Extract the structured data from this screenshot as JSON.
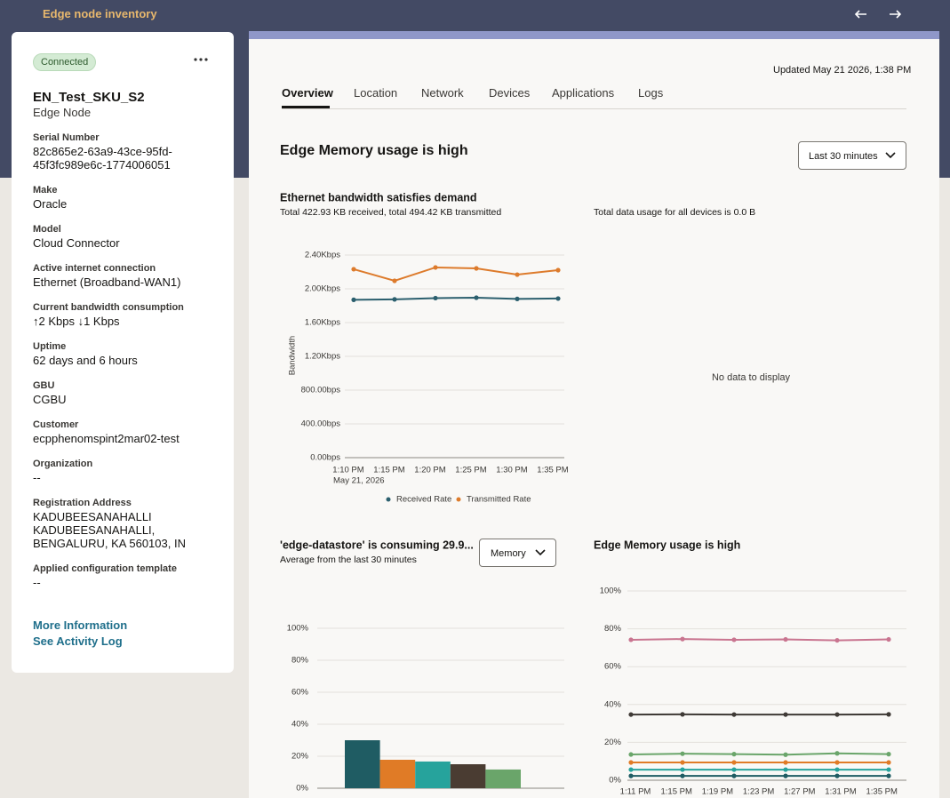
{
  "header": {
    "title": "Edge node inventory"
  },
  "node": {
    "status": "Connected",
    "name": "EN_Test_SKU_S2",
    "type": "Edge Node",
    "fields": [
      {
        "label": "Serial Number",
        "value": "82c865e2-63a9-43ce-95fd-45f3fc989e6c-1774006051"
      },
      {
        "label": "Make",
        "value": "Oracle"
      },
      {
        "label": "Model",
        "value": "Cloud Connector"
      },
      {
        "label": "Active internet connection",
        "value": "Ethernet (Broadband-WAN1)"
      },
      {
        "label": "Current bandwidth consumption",
        "value": "↑2 Kbps  ↓1 Kbps"
      },
      {
        "label": "Uptime",
        "value": "62 days and 6 hours"
      },
      {
        "label": "GBU",
        "value": "CGBU"
      },
      {
        "label": "Customer",
        "value": "ecpphenomspint2mar02-test"
      },
      {
        "label": "Organization",
        "value": "--"
      },
      {
        "label": "Registration Address",
        "value": "KADUBEESANAHALLI KADUBEESANAHALLI, BENGALURU, KA 560103, IN"
      },
      {
        "label": "Applied configuration template",
        "value": "--"
      }
    ],
    "links": [
      "More Information",
      "See Activity Log"
    ]
  },
  "updated": "Updated May 21 2026, 1:38 PM",
  "tabs": [
    "Overview",
    "Location",
    "Network",
    "Devices",
    "Applications",
    "Logs"
  ],
  "heading": "Edge Memory usage is high",
  "range_select": "Last 30 minutes",
  "bandwidth_chart": {
    "type": "line",
    "title": "Ethernet bandwidth satisfies demand",
    "subtitle": "Total 422.93 KB received, total 494.42 KB transmitted",
    "y_label": "Bandwidth",
    "categories": [
      "1:10 PM",
      "1:15 PM",
      "1:20 PM",
      "1:25 PM",
      "1:30 PM",
      "1:35 PM"
    ],
    "date": "May 21, 2026",
    "ylim": [
      0,
      2400
    ],
    "yticks": [
      {
        "value": 0,
        "label": "0.00bps"
      },
      {
        "value": 400,
        "label": "400.00bps"
      },
      {
        "value": 800,
        "label": "800.00bps"
      },
      {
        "value": 1200,
        "label": "1.20Kbps"
      },
      {
        "value": 1600,
        "label": "1.60Kbps"
      },
      {
        "value": 2000,
        "label": "2.00Kbps"
      },
      {
        "value": 2400,
        "label": "2.40Kbps"
      }
    ],
    "series": [
      {
        "name": "Received Rate",
        "color": "#2b5f6e",
        "values": [
          1870,
          1875,
          1890,
          1895,
          1880,
          1885
        ]
      },
      {
        "name": "Transmitted Rate",
        "color": "#dd7b2c",
        "values": [
          2232,
          2095,
          2253,
          2242,
          2168,
          2221
        ]
      }
    ]
  },
  "usage_chart": {
    "type": "pie",
    "subtitle": "Total data usage for all devices is 0.0 B",
    "empty": "No data to display"
  },
  "datastore_chart": {
    "type": "bar",
    "title": "'edge-datastore' is consuming 29.9...",
    "subtitle": "Average from the last 30 minutes",
    "select": "Memory",
    "categories": [
      null,
      null,
      null,
      null,
      null
    ],
    "values": [
      30,
      17.8,
      16.7,
      15,
      11.7
    ],
    "colors": [
      "#1f5c63",
      "#e07b26",
      "#26a39c",
      "#4a3c32",
      "#6aa56a"
    ],
    "ylim": [
      0,
      100
    ],
    "yticks": [
      {
        "value": 0,
        "label": "0%"
      },
      {
        "value": 20,
        "label": "20%"
      },
      {
        "value": 40,
        "label": "40%"
      },
      {
        "value": 60,
        "label": "60%"
      },
      {
        "value": 80,
        "label": "80%"
      },
      {
        "value": 100,
        "label": "100%"
      }
    ]
  },
  "memory_chart": {
    "type": "line",
    "title": "Edge Memory usage is high",
    "xticks": [
      "1:11 PM",
      "1:15 PM",
      "1:19 PM",
      "1:23 PM",
      "1:27 PM",
      "1:31 PM",
      "1:35 PM"
    ],
    "ylim": [
      0,
      100
    ],
    "yticks": [
      {
        "value": 0,
        "label": "0%"
      },
      {
        "value": 20,
        "label": "20%"
      },
      {
        "value": 40,
        "label": "40%"
      },
      {
        "value": 60,
        "label": "60%"
      },
      {
        "value": 80,
        "label": "80%"
      },
      {
        "value": 100,
        "label": "100%"
      }
    ],
    "series": [
      {
        "color": "#c97590",
        "values": [
          74.2,
          74.6,
          74.2,
          74.4,
          73.9,
          74.4
        ]
      },
      {
        "color": "#3f3a36",
        "values": [
          34.7,
          34.8,
          34.7,
          34.7,
          34.7,
          34.8
        ]
      },
      {
        "color": "#6aa56a",
        "values": [
          13.6,
          14.0,
          13.8,
          13.5,
          14.2,
          13.8
        ]
      },
      {
        "color": "#e07b26",
        "values": [
          9.4,
          9.4,
          9.4,
          9.4,
          9.4,
          9.4
        ]
      },
      {
        "color": "#26a39c",
        "values": [
          5.6,
          5.6,
          5.6,
          5.6,
          5.6,
          5.6
        ]
      },
      {
        "color": "#1f5c63",
        "values": [
          2.3,
          2.3,
          2.3,
          2.3,
          2.3,
          2.3
        ]
      }
    ]
  }
}
